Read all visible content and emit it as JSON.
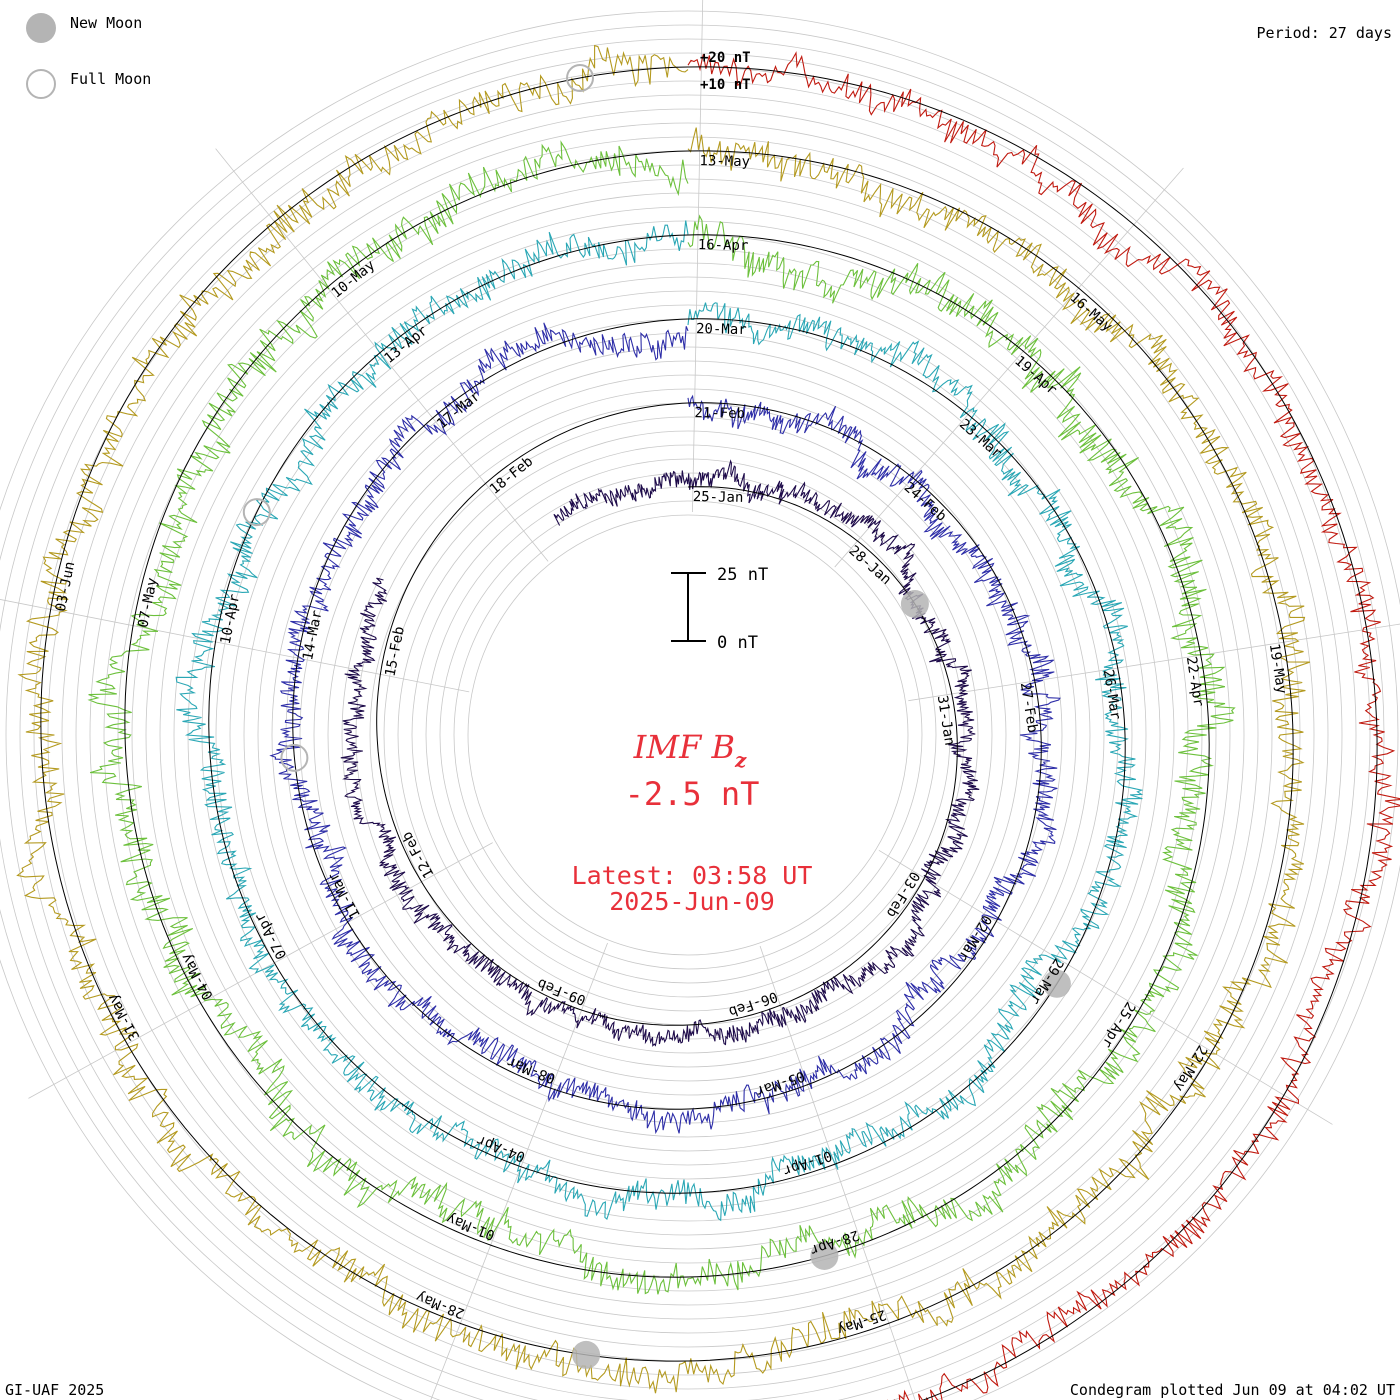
{
  "chart_data": {
    "type": "line",
    "title": "IMF B",
    "title_subscript": "z",
    "current_value": "-2.5 nT",
    "latest_label": "Latest: 03:58 UT",
    "latest_date": "2025-Jun-09",
    "period_label": "Period: 27 days",
    "credit": "GI-UAF 2025",
    "plotted_label": "Condegram plotted Jun 09 at 04:02 UT",
    "legend": {
      "new_moon": "New Moon",
      "full_moon": "Full Moon"
    },
    "scale_labels": {
      "top": "+20 nT",
      "mid": "+10 nT"
    },
    "scale_bar": {
      "top": "25 nT",
      "bottom": "0 nT"
    },
    "rings": [
      {
        "index": 0,
        "color": "#1e0b4a",
        "amplitude": 12,
        "date_labels": [
          "25-Jan",
          "28-Jan",
          "31-Jan",
          "03-Feb",
          "06-Feb",
          "09-Feb",
          "12-Feb",
          "15-Feb",
          "18-Feb"
        ]
      },
      {
        "index": 1,
        "color": "#2e2ea8",
        "amplitude": 16,
        "date_labels": [
          "21-Feb",
          "24-Feb",
          "27-Feb",
          "02-Mar",
          "05-Mar",
          "08-Mar",
          "11-Mar",
          "14-Mar",
          "17-Mar"
        ]
      },
      {
        "index": 2,
        "color": "#2aa7b5",
        "amplitude": 18,
        "date_labels": [
          "20-Mar",
          "23-Mar",
          "26-Mar",
          "29-Mar",
          "01-Apr",
          "04-Apr",
          "07-Apr",
          "10-Apr",
          "13-Apr"
        ]
      },
      {
        "index": 3,
        "color": "#6cc03c",
        "amplitude": 22,
        "date_labels": [
          "16-Apr",
          "19-Apr",
          "22-Apr",
          "25-Apr",
          "28-Apr",
          "01-May",
          "04-May",
          "07-May",
          "10-May"
        ]
      },
      {
        "index": 4,
        "color": "#b49a20",
        "amplitude": 20,
        "date_labels": [
          "13-May",
          "16-May",
          "19-May",
          "22-May",
          "25-May",
          "28-May",
          "31-May",
          "03-Jun",
          ""
        ]
      },
      {
        "index": 5,
        "color": "#c01a10",
        "amplitude": 18,
        "date_labels": [
          "",
          "",
          "",
          "",
          "",
          "",
          "",
          "",
          ""
        ]
      }
    ],
    "moon_phases": {
      "new": [
        {
          "ring": 0,
          "day_offset": 4.5
        },
        {
          "ring": 2,
          "day_offset": 9.3
        },
        {
          "ring": 3,
          "day_offset": 12.4
        },
        {
          "ring": 4,
          "day_offset": 14.2
        }
      ],
      "full": [
        {
          "ring": 1,
          "day_offset": 20.0
        },
        {
          "ring": 2,
          "day_offset": 22.3
        },
        {
          "ring": 4,
          "day_offset": 26.3
        }
      ]
    }
  }
}
